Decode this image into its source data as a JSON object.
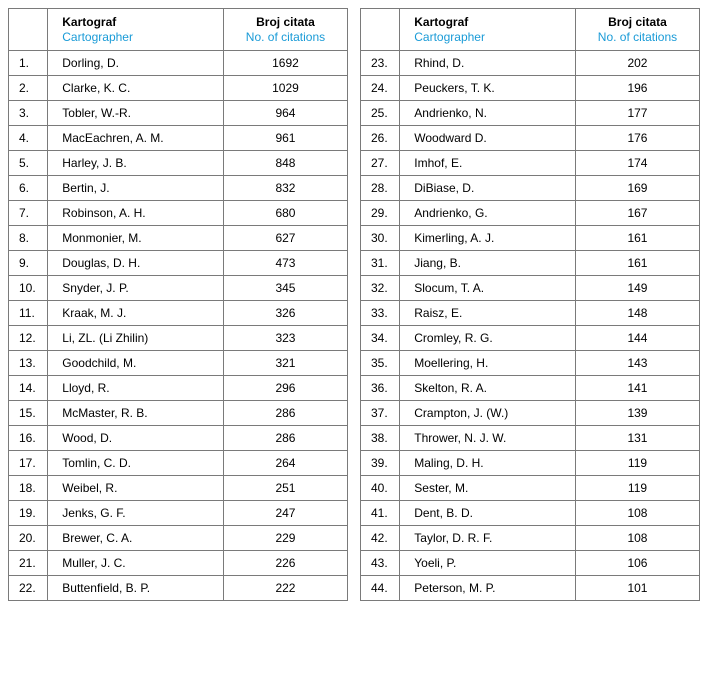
{
  "headers": {
    "rank": "",
    "cartographer_primary": "Kartograf",
    "cartographer_secondary": "Cartographer",
    "citations_primary": "Broj citata",
    "citations_secondary": "No. of citations"
  },
  "left_rows": [
    {
      "rank": "1.",
      "name": "Dorling, D.",
      "cites": "1692"
    },
    {
      "rank": "2.",
      "name": "Clarke, K. C.",
      "cites": "1029"
    },
    {
      "rank": "3.",
      "name": "Tobler, W.-R.",
      "cites": "964"
    },
    {
      "rank": "4.",
      "name": "MacEachren, A. M.",
      "cites": "961"
    },
    {
      "rank": "5.",
      "name": "Harley, J. B.",
      "cites": "848"
    },
    {
      "rank": "6.",
      "name": "Bertin, J.",
      "cites": "832"
    },
    {
      "rank": "7.",
      "name": "Robinson, A. H.",
      "cites": "680"
    },
    {
      "rank": "8.",
      "name": "Monmonier, M.",
      "cites": "627"
    },
    {
      "rank": "9.",
      "name": "Douglas, D. H.",
      "cites": "473"
    },
    {
      "rank": "10.",
      "name": "Snyder, J. P.",
      "cites": "345"
    },
    {
      "rank": "11.",
      "name": "Kraak, M. J.",
      "cites": "326"
    },
    {
      "rank": "12.",
      "name": "Li, ZL. (Li Zhilin)",
      "cites": "323"
    },
    {
      "rank": "13.",
      "name": "Goodchild, M.",
      "cites": "321"
    },
    {
      "rank": "14.",
      "name": "Lloyd, R.",
      "cites": "296"
    },
    {
      "rank": "15.",
      "name": "McMaster, R. B.",
      "cites": "286"
    },
    {
      "rank": "16.",
      "name": "Wood, D.",
      "cites": "286"
    },
    {
      "rank": "17.",
      "name": "Tomlin, C. D.",
      "cites": "264"
    },
    {
      "rank": "18.",
      "name": "Weibel, R.",
      "cites": "251"
    },
    {
      "rank": "19.",
      "name": "Jenks, G. F.",
      "cites": "247"
    },
    {
      "rank": "20.",
      "name": "Brewer, C. A.",
      "cites": "229"
    },
    {
      "rank": "21.",
      "name": "Muller, J. C.",
      "cites": "226"
    },
    {
      "rank": "22.",
      "name": "Buttenfield, B. P.",
      "cites": "222"
    }
  ],
  "right_rows": [
    {
      "rank": "23.",
      "name": "Rhind, D.",
      "cites": "202"
    },
    {
      "rank": "24.",
      "name": "Peuckers, T. K.",
      "cites": "196"
    },
    {
      "rank": "25.",
      "name": "Andrienko, N.",
      "cites": "177"
    },
    {
      "rank": "26.",
      "name": "Woodward D.",
      "cites": "176"
    },
    {
      "rank": "27.",
      "name": "Imhof, E.",
      "cites": "174"
    },
    {
      "rank": "28.",
      "name": "DiBiase, D.",
      "cites": "169"
    },
    {
      "rank": "29.",
      "name": "Andrienko, G.",
      "cites": "167"
    },
    {
      "rank": "30.",
      "name": "Kimerling, A. J.",
      "cites": "161"
    },
    {
      "rank": "31.",
      "name": "Jiang, B.",
      "cites": "161"
    },
    {
      "rank": "32.",
      "name": "Slocum, T. A.",
      "cites": "149"
    },
    {
      "rank": "33.",
      "name": "Raisz, E.",
      "cites": "148"
    },
    {
      "rank": "34.",
      "name": "Cromley, R. G.",
      "cites": "144"
    },
    {
      "rank": "35.",
      "name": "Moellering, H.",
      "cites": "143"
    },
    {
      "rank": "36.",
      "name": "Skelton, R. A.",
      "cites": "141"
    },
    {
      "rank": "37.",
      "name": "Crampton, J. (W.)",
      "cites": "139"
    },
    {
      "rank": "38.",
      "name": "Thrower, N. J. W.",
      "cites": "131"
    },
    {
      "rank": "39.",
      "name": "Maling, D. H.",
      "cites": "119"
    },
    {
      "rank": "40.",
      "name": "Sester, M.",
      "cites": "119"
    },
    {
      "rank": "41.",
      "name": "Dent, B. D.",
      "cites": "108"
    },
    {
      "rank": "42.",
      "name": "Taylor, D. R. F.",
      "cites": "108"
    },
    {
      "rank": "43.",
      "name": "Yoeli, P.",
      "cites": "106"
    },
    {
      "rank": "44.",
      "name": "Peterson, M. P.",
      "cites": "101"
    }
  ]
}
